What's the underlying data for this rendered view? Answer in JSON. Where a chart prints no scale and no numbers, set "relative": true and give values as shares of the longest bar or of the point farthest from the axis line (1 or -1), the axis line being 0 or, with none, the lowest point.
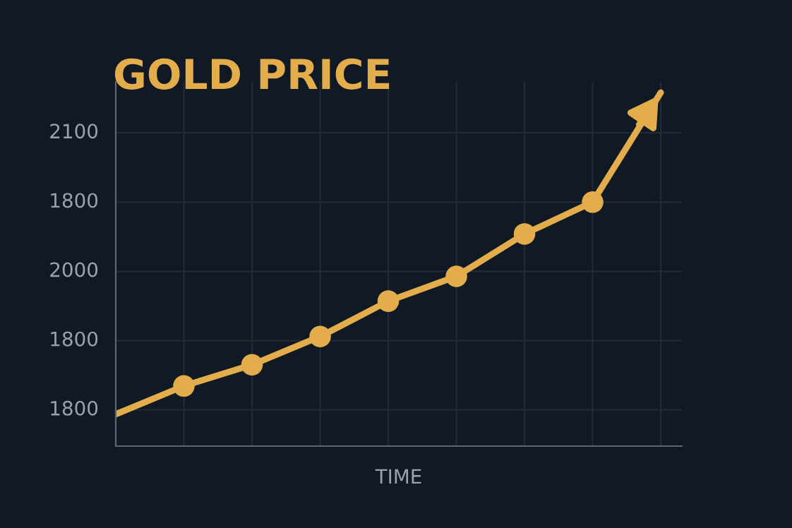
{
  "chart_data": {
    "type": "line",
    "title": "GOLD PRICE",
    "xlabel": "TIME",
    "relative": true,
    "categories": [
      null,
      null,
      null,
      null,
      null,
      null,
      null,
      null,
      null
    ],
    "series": [
      {
        "color": "#e3ad4c",
        "values": [
          0.09,
          0.17,
          0.23,
          0.31,
          0.41,
          0.48,
          0.6,
          0.69,
          1.0
        ]
      }
    ],
    "annotations": [
      "2100",
      "1800",
      "2000",
      "1800",
      "1800"
    ],
    "grid": true,
    "marker": "circle",
    "line_style": "solid",
    "legend": false
  }
}
